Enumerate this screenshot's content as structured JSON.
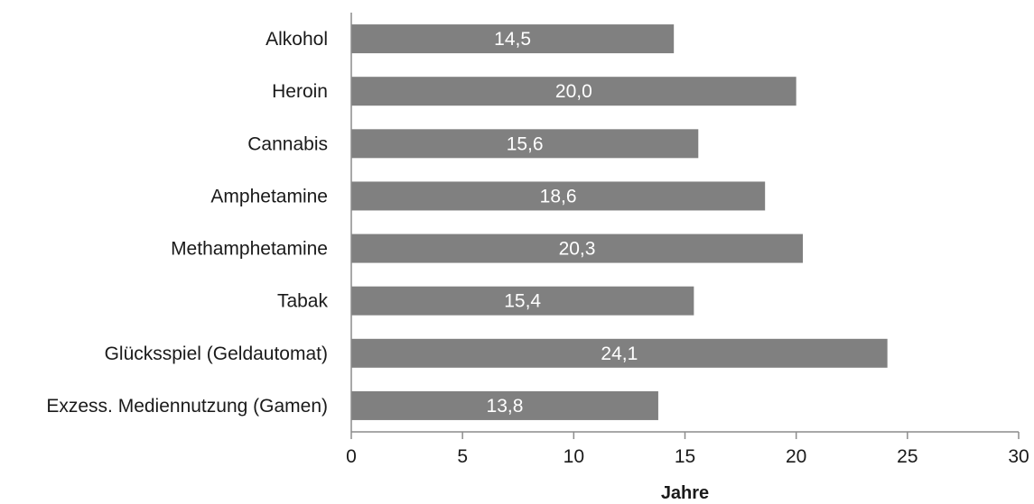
{
  "chart_data": {
    "type": "bar",
    "orientation": "horizontal",
    "categories": [
      "Alkohol",
      "Heroin",
      "Cannabis",
      "Amphetamine",
      "Methamphetamine",
      "Tabak",
      "Glücksspiel (Geldautomat)",
      "Exzess. Mediennutzung (Gamen)"
    ],
    "values": [
      14.5,
      20.0,
      15.6,
      18.6,
      20.3,
      15.4,
      24.1,
      13.8
    ],
    "value_labels": [
      "14,5",
      "20,0",
      "15,6",
      "18,6",
      "20,3",
      "15,4",
      "24,1",
      "13,8"
    ],
    "xlabel": "Jahre",
    "xlim": [
      0,
      30
    ],
    "xticks": [
      0,
      5,
      10,
      15,
      20,
      25,
      30
    ],
    "xtick_labels": [
      "0",
      "5",
      "10",
      "15",
      "20",
      "25",
      "30"
    ],
    "grid": false,
    "legend": "none",
    "bar_color": "#808080",
    "data_label_color": "#ffffff"
  }
}
